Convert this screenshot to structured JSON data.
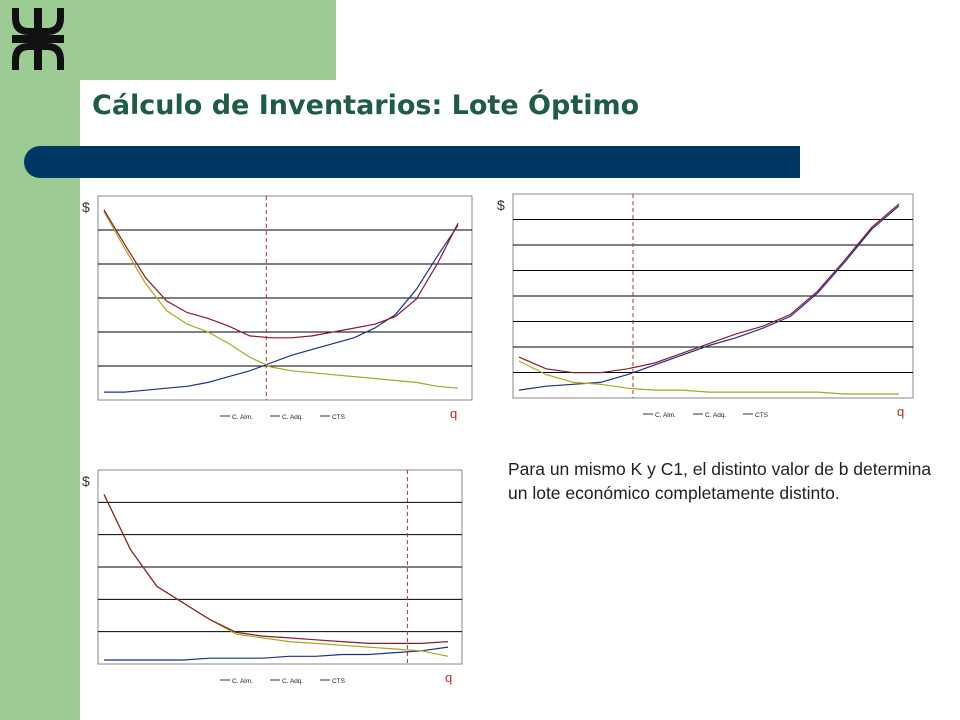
{
  "slide": {
    "title": "Cálculo de Inventarios: Lote Óptimo",
    "body_text": "Para un mismo K y C1, el distinto valor de b determina un lote económico completamente distinto.",
    "colors": {
      "green": "#9ccb94",
      "navy": "#003865",
      "title": "#1f5c45"
    },
    "logo_icon": "utn-logo-icon"
  },
  "legend": [
    "C. Alm.",
    "C. Adq.",
    "CTS"
  ],
  "chart_data": [
    {
      "type": "line",
      "ylabel": "$",
      "xlabel": "q",
      "legend": [
        "C. Alm.",
        "C. Adq.",
        "CTS"
      ],
      "colors": [
        "#1f2f8c",
        "#a8a81a",
        "#8c1a2a"
      ],
      "optimum_line": 0.45,
      "series": [
        {
          "name": "C. Alm.",
          "values": [
            0.02,
            0.02,
            0.03,
            0.04,
            0.05,
            0.07,
            0.1,
            0.13,
            0.17,
            0.21,
            0.24,
            0.27,
            0.3,
            0.35,
            0.42,
            0.55,
            0.72,
            0.88
          ]
        },
        {
          "name": "C. Adq.",
          "values": [
            0.95,
            0.76,
            0.58,
            0.44,
            0.37,
            0.33,
            0.27,
            0.2,
            0.15,
            0.13,
            0.12,
            0.11,
            0.1,
            0.09,
            0.08,
            0.07,
            0.05,
            0.04
          ]
        },
        {
          "name": "CTS",
          "values": [
            0.96,
            0.78,
            0.61,
            0.49,
            0.43,
            0.4,
            0.36,
            0.31,
            0.3,
            0.3,
            0.31,
            0.33,
            0.35,
            0.37,
            0.41,
            0.5,
            0.68,
            0.89
          ]
        }
      ]
    },
    {
      "type": "line",
      "ylabel": "$",
      "xlabel": "q",
      "legend": [
        "C. Alm.",
        "C. Adq.",
        "CTS"
      ],
      "colors": [
        "#1f2f8c",
        "#a8a81a",
        "#8c1a2a"
      ],
      "optimum_line": 0.3,
      "series": [
        {
          "name": "C. Alm.",
          "values": [
            0.02,
            0.04,
            0.05,
            0.06,
            0.1,
            0.15,
            0.2,
            0.25,
            0.29,
            0.34,
            0.4,
            0.52,
            0.68,
            0.85,
            0.97
          ]
        },
        {
          "name": "C. Adq.",
          "values": [
            0.17,
            0.1,
            0.06,
            0.05,
            0.03,
            0.02,
            0.02,
            0.01,
            0.01,
            0.01,
            0.01,
            0.01,
            0.0,
            0.0,
            0.0
          ]
        },
        {
          "name": "CTS",
          "values": [
            0.19,
            0.13,
            0.11,
            0.11,
            0.13,
            0.16,
            0.21,
            0.26,
            0.31,
            0.35,
            0.41,
            0.53,
            0.69,
            0.86,
            0.98
          ]
        }
      ]
    },
    {
      "type": "line",
      "ylabel": "$",
      "xlabel": "q",
      "legend": [
        "C. Alm.",
        "C. Adq.",
        "CTS"
      ],
      "colors": [
        "#1f2f8c",
        "#a8a81a",
        "#8c1a2a"
      ],
      "optimum_line": 0.85,
      "series": [
        {
          "name": "C. Alm.",
          "values": [
            0.0,
            0.0,
            0.0,
            0.0,
            0.01,
            0.01,
            0.01,
            0.02,
            0.02,
            0.03,
            0.03,
            0.04,
            0.05,
            0.07
          ]
        },
        {
          "name": "C. Adq.",
          "values": [
            0.9,
            0.6,
            0.4,
            0.31,
            0.22,
            0.14,
            0.12,
            0.1,
            0.09,
            0.08,
            0.07,
            0.06,
            0.05,
            0.02
          ]
        },
        {
          "name": "CTS",
          "values": [
            0.9,
            0.6,
            0.4,
            0.31,
            0.22,
            0.15,
            0.13,
            0.12,
            0.11,
            0.1,
            0.09,
            0.09,
            0.09,
            0.1
          ]
        }
      ]
    }
  ]
}
